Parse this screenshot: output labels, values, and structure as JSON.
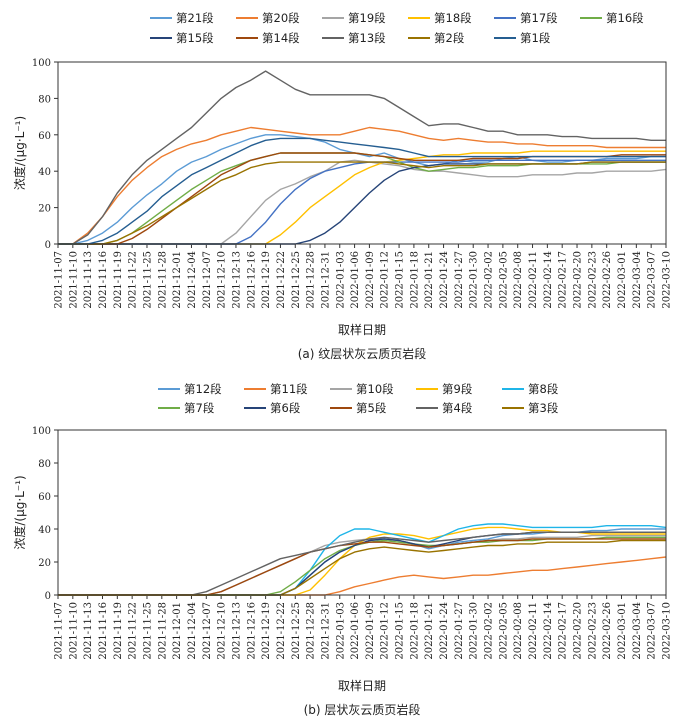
{
  "chart_data": [
    {
      "type": "line",
      "caption": "(a) 纹层状灰云质页岩段",
      "xlabel": "取样日期",
      "ylabel": "浓度/(μg·L⁻¹)",
      "ylim": [
        0,
        100
      ],
      "yticks": [
        "0",
        "20",
        "40",
        "60",
        "80",
        "100"
      ],
      "categories": [
        "2021-11-07",
        "2021-11-10",
        "2021-11-13",
        "2021-11-16",
        "2021-11-19",
        "2021-11-22",
        "2021-11-25",
        "2021-11-28",
        "2021-12-01",
        "2021-12-04",
        "2021-12-07",
        "2021-12-10",
        "2021-12-13",
        "2021-12-16",
        "2021-12-19",
        "2021-12-22",
        "2021-12-25",
        "2021-12-28",
        "2021-12-31",
        "2022-01-03",
        "2022-01-06",
        "2022-01-09",
        "2022-01-12",
        "2022-01-15",
        "2022-01-18",
        "2022-01-21",
        "2022-01-24",
        "2022-01-27",
        "2022-01-30",
        "2022-02-02",
        "2022-02-05",
        "2022-02-08",
        "2022-02-11",
        "2022-02-14",
        "2022-02-17",
        "2022-02-20",
        "2022-02-23",
        "2022-02-26",
        "2022-03-01",
        "2022-03-04",
        "2022-03-07",
        "2022-03-10"
      ],
      "series": [
        {
          "name": "第21段",
          "color": "#5b9bd5",
          "values": [
            0,
            0,
            2,
            6,
            12,
            20,
            27,
            33,
            40,
            45,
            48,
            52,
            55,
            58,
            60,
            60,
            59,
            58,
            56,
            52,
            50,
            48,
            50,
            47,
            45,
            43,
            44,
            46,
            45,
            45,
            47,
            48,
            46,
            45,
            45,
            46,
            46,
            47,
            47,
            47,
            48,
            48
          ]
        },
        {
          "name": "第20段",
          "color": "#ed7d31",
          "values": [
            0,
            0,
            6,
            15,
            26,
            35,
            42,
            48,
            52,
            55,
            57,
            60,
            62,
            64,
            63,
            62,
            61,
            60,
            60,
            60,
            62,
            64,
            63,
            62,
            60,
            58,
            57,
            58,
            57,
            56,
            56,
            55,
            55,
            54,
            54,
            54,
            54,
            53,
            53,
            53,
            53,
            53
          ]
        },
        {
          "name": "第19段",
          "color": "#a5a5a5",
          "values": [
            0,
            0,
            0,
            0,
            0,
            0,
            0,
            0,
            0,
            0,
            0,
            0,
            6,
            15,
            24,
            30,
            33,
            37,
            40,
            45,
            46,
            45,
            44,
            43,
            41,
            40,
            40,
            39,
            38,
            37,
            37,
            37,
            38,
            38,
            38,
            39,
            39,
            40,
            40,
            40,
            40,
            41
          ]
        },
        {
          "name": "第18段",
          "color": "#ffc000",
          "values": [
            0,
            0,
            0,
            0,
            0,
            0,
            0,
            0,
            0,
            0,
            0,
            0,
            0,
            0,
            0,
            5,
            12,
            20,
            26,
            32,
            38,
            42,
            45,
            46,
            47,
            48,
            49,
            49,
            50,
            50,
            50,
            50,
            51,
            51,
            51,
            51,
            51,
            51,
            51,
            51,
            51,
            51
          ]
        },
        {
          "name": "第17段",
          "color": "#4472c4",
          "values": [
            0,
            0,
            0,
            0,
            0,
            0,
            0,
            0,
            0,
            0,
            0,
            0,
            0,
            4,
            12,
            22,
            30,
            36,
            40,
            42,
            44,
            45,
            45,
            45,
            45,
            45,
            45,
            45,
            46,
            46,
            46,
            46,
            46,
            46,
            46,
            46,
            46,
            46,
            46,
            46,
            46,
            46
          ]
        },
        {
          "name": "第16段",
          "color": "#70ad47",
          "values": [
            0,
            0,
            0,
            0,
            2,
            6,
            12,
            18,
            24,
            30,
            35,
            40,
            43,
            46,
            48,
            50,
            50,
            50,
            50,
            50,
            50,
            49,
            48,
            45,
            42,
            40,
            41,
            42,
            42,
            43,
            43,
            43,
            44,
            44,
            44,
            44,
            44,
            44,
            45,
            45,
            45,
            45
          ]
        },
        {
          "name": "第15段",
          "color": "#264478",
          "values": [
            0,
            0,
            0,
            0,
            0,
            0,
            0,
            0,
            0,
            0,
            0,
            0,
            0,
            0,
            0,
            0,
            0,
            2,
            6,
            12,
            20,
            28,
            35,
            40,
            42,
            43,
            44,
            44,
            44,
            44,
            44,
            44,
            44,
            44,
            44,
            44,
            45,
            45,
            45,
            45,
            45,
            45
          ]
        },
        {
          "name": "第14段",
          "color": "#9e480e",
          "values": [
            0,
            0,
            0,
            0,
            0,
            3,
            8,
            14,
            20,
            26,
            32,
            38,
            42,
            46,
            48,
            50,
            50,
            50,
            50,
            50,
            50,
            49,
            48,
            47,
            46,
            46,
            46,
            46,
            47,
            47,
            47,
            47,
            48,
            48,
            48,
            48,
            48,
            48,
            49,
            49,
            49,
            49
          ]
        },
        {
          "name": "第13段",
          "color": "#636363",
          "values": [
            0,
            0,
            5,
            15,
            28,
            38,
            46,
            52,
            58,
            64,
            72,
            80,
            86,
            90,
            95,
            90,
            85,
            82,
            82,
            82,
            82,
            82,
            80,
            75,
            70,
            65,
            66,
            66,
            64,
            62,
            62,
            60,
            60,
            60,
            59,
            59,
            58,
            58,
            58,
            58,
            57,
            57
          ]
        },
        {
          "name": "第2段",
          "color": "#997300",
          "values": [
            0,
            0,
            0,
            0,
            2,
            6,
            10,
            15,
            20,
            25,
            30,
            35,
            38,
            42,
            44,
            45,
            45,
            45,
            45,
            45,
            45,
            45,
            45,
            44,
            43,
            42,
            43,
            43,
            43,
            44,
            44,
            44,
            44,
            44,
            44,
            44,
            45,
            45,
            45,
            45,
            45,
            45
          ]
        },
        {
          "name": "第1段",
          "color": "#255e91",
          "values": [
            0,
            0,
            0,
            2,
            6,
            12,
            18,
            26,
            32,
            38,
            42,
            46,
            50,
            54,
            57,
            58,
            58,
            58,
            57,
            56,
            55,
            54,
            53,
            52,
            50,
            48,
            48,
            48,
            48,
            48,
            48,
            48,
            48,
            48,
            48,
            48,
            48,
            48,
            48,
            48,
            48,
            48
          ]
        }
      ]
    },
    {
      "type": "line",
      "caption": "(b) 层状灰云质页岩段",
      "xlabel": "取样日期",
      "ylabel": "浓度/(μg·L⁻¹)",
      "ylim": [
        0,
        100
      ],
      "yticks": [
        "0",
        "20",
        "40",
        "60",
        "80",
        "100"
      ],
      "categories": [
        "2021-11-07",
        "2021-11-10",
        "2021-11-13",
        "2021-11-16",
        "2021-11-19",
        "2021-11-22",
        "2021-11-25",
        "2021-11-28",
        "2021-12-01",
        "2021-12-04",
        "2021-12-07",
        "2021-12-10",
        "2021-12-13",
        "2021-12-16",
        "2021-12-19",
        "2021-12-22",
        "2021-12-25",
        "2021-12-28",
        "2021-12-31",
        "2022-01-03",
        "2022-01-06",
        "2022-01-09",
        "2022-01-12",
        "2022-01-15",
        "2022-01-18",
        "2022-01-21",
        "2022-01-24",
        "2022-01-27",
        "2022-01-30",
        "2022-02-02",
        "2022-02-05",
        "2022-02-08",
        "2022-02-11",
        "2022-02-14",
        "2022-02-17",
        "2022-02-20",
        "2022-02-23",
        "2022-02-26",
        "2022-03-01",
        "2022-03-04",
        "2022-03-07",
        "2022-03-10"
      ],
      "series": [
        {
          "name": "第12段",
          "color": "#5b9bd5",
          "values": [
            0,
            0,
            0,
            0,
            0,
            0,
            0,
            0,
            0,
            0,
            0,
            0,
            0,
            0,
            0,
            0,
            4,
            12,
            20,
            26,
            30,
            33,
            34,
            33,
            31,
            28,
            30,
            32,
            33,
            34,
            36,
            37,
            37,
            38,
            38,
            38,
            39,
            39,
            40,
            40,
            40,
            40
          ]
        },
        {
          "name": "第11段",
          "color": "#ed7d31",
          "values": [
            0,
            0,
            0,
            0,
            0,
            0,
            0,
            0,
            0,
            0,
            0,
            0,
            0,
            0,
            0,
            0,
            0,
            0,
            0,
            2,
            5,
            7,
            9,
            11,
            12,
            11,
            10,
            11,
            12,
            12,
            13,
            14,
            15,
            15,
            16,
            17,
            18,
            19,
            20,
            21,
            22,
            23
          ]
        },
        {
          "name": "第10段",
          "color": "#a5a5a5",
          "values": [
            0,
            0,
            0,
            0,
            0,
            0,
            0,
            0,
            0,
            0,
            0,
            2,
            6,
            10,
            14,
            18,
            22,
            26,
            30,
            32,
            33,
            34,
            34,
            33,
            31,
            29,
            30,
            31,
            32,
            33,
            34,
            34,
            35,
            35,
            35,
            35,
            36,
            36,
            36,
            36,
            36,
            36
          ]
        },
        {
          "name": "第9段",
          "color": "#ffc000",
          "values": [
            0,
            0,
            0,
            0,
            0,
            0,
            0,
            0,
            0,
            0,
            0,
            0,
            0,
            0,
            0,
            0,
            0,
            3,
            12,
            22,
            30,
            35,
            37,
            37,
            36,
            34,
            36,
            38,
            40,
            41,
            41,
            40,
            39,
            39,
            38,
            38,
            37,
            37,
            37,
            37,
            37,
            37
          ]
        },
        {
          "name": "第8段",
          "color": "#1fb5e8",
          "values": [
            0,
            0,
            0,
            0,
            0,
            0,
            0,
            0,
            0,
            0,
            0,
            0,
            0,
            0,
            0,
            0,
            4,
            15,
            28,
            36,
            40,
            40,
            38,
            36,
            34,
            32,
            36,
            40,
            42,
            43,
            43,
            42,
            41,
            41,
            41,
            41,
            41,
            42,
            42,
            42,
            42,
            41
          ]
        },
        {
          "name": "第7段",
          "color": "#70ad47",
          "values": [
            0,
            0,
            0,
            0,
            0,
            0,
            0,
            0,
            0,
            0,
            0,
            0,
            0,
            0,
            0,
            2,
            8,
            15,
            22,
            27,
            30,
            32,
            33,
            32,
            31,
            30,
            30,
            31,
            32,
            32,
            33,
            33,
            33,
            34,
            34,
            34,
            34,
            35,
            35,
            35,
            35,
            35
          ]
        },
        {
          "name": "第6段",
          "color": "#264478",
          "values": [
            0,
            0,
            0,
            0,
            0,
            0,
            0,
            0,
            0,
            0,
            0,
            0,
            0,
            0,
            0,
            0,
            4,
            12,
            20,
            26,
            30,
            33,
            34,
            33,
            31,
            29,
            31,
            33,
            35,
            36,
            37,
            37,
            38,
            38,
            38,
            38,
            38,
            38,
            38,
            38,
            38,
            38
          ]
        },
        {
          "name": "第5段",
          "color": "#9e480e",
          "values": [
            0,
            0,
            0,
            0,
            0,
            0,
            0,
            0,
            0,
            0,
            0,
            2,
            6,
            10,
            14,
            18,
            22,
            26,
            28,
            30,
            31,
            32,
            32,
            31,
            30,
            29,
            30,
            31,
            32,
            33,
            33,
            33,
            34,
            34,
            34,
            34,
            34,
            34,
            34,
            34,
            34,
            34
          ]
        },
        {
          "name": "第4段",
          "color": "#636363",
          "values": [
            0,
            0,
            0,
            0,
            0,
            0,
            0,
            0,
            0,
            0,
            2,
            6,
            10,
            14,
            18,
            22,
            24,
            26,
            28,
            30,
            32,
            34,
            35,
            34,
            33,
            32,
            33,
            34,
            35,
            36,
            37,
            37,
            38,
            38,
            38,
            38,
            38,
            38,
            38,
            38,
            38,
            38
          ]
        },
        {
          "name": "第3段",
          "color": "#997300",
          "values": [
            0,
            0,
            0,
            0,
            0,
            0,
            0,
            0,
            0,
            0,
            0,
            0,
            0,
            0,
            0,
            0,
            4,
            10,
            16,
            22,
            26,
            28,
            29,
            28,
            27,
            26,
            27,
            28,
            29,
            30,
            30,
            31,
            31,
            32,
            32,
            32,
            32,
            32,
            33,
            33,
            33,
            33
          ]
        }
      ]
    }
  ]
}
